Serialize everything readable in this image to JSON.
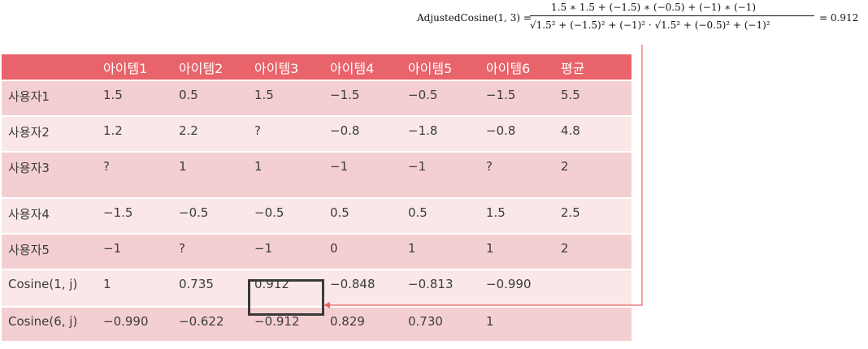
{
  "formula": {
    "lhs": "AdjustedCosine(1, 3) =",
    "numerator": "1.5 ∗ 1.5 + (−1.5) ∗ (−0.5) + (−1) ∗ (−1)",
    "denominator": "√1.5² + (−1.5)² + (−1)² · √1.5² + (−0.5)² + (−1)²",
    "result": "= 0.912"
  },
  "table": {
    "headers": [
      "",
      "아이템1",
      "아이템2",
      "아이템3",
      "아이템4",
      "아이템5",
      "아이템6",
      "평균"
    ],
    "rows": [
      [
        "사용자1",
        "1.5",
        "0.5",
        "1.5",
        "−1.5",
        "−0.5",
        "−1.5",
        "5.5"
      ],
      [
        "사용자2",
        "1.2",
        "2.2",
        "?",
        "−0.8",
        "−1.8",
        "−0.8",
        "4.8"
      ],
      [
        "사용자3",
        "?",
        "1",
        "1",
        "−1",
        "−1",
        "?",
        "2"
      ],
      [
        "사용자4",
        "−1.5",
        "−0.5",
        "−0.5",
        "0.5",
        "0.5",
        "1.5",
        "2.5"
      ],
      [
        "사용자5",
        "−1",
        "?",
        "−1",
        "0",
        "1",
        "1",
        "2"
      ],
      [
        "Cosine(1,  j)",
        "1",
        "0.735",
        "0.912",
        "−0.848",
        "−0.813",
        "−0.990",
        ""
      ],
      [
        "Cosine(6,  j)",
        "−0.990",
        "−0.622",
        "−0.912",
        "0.829",
        "0.730",
        "1",
        ""
      ]
    ]
  },
  "colors": {
    "header": "#e9636a",
    "row_dark": "#f4cfd1",
    "row_light": "#fae8e9",
    "arrow": "#e9636a"
  }
}
